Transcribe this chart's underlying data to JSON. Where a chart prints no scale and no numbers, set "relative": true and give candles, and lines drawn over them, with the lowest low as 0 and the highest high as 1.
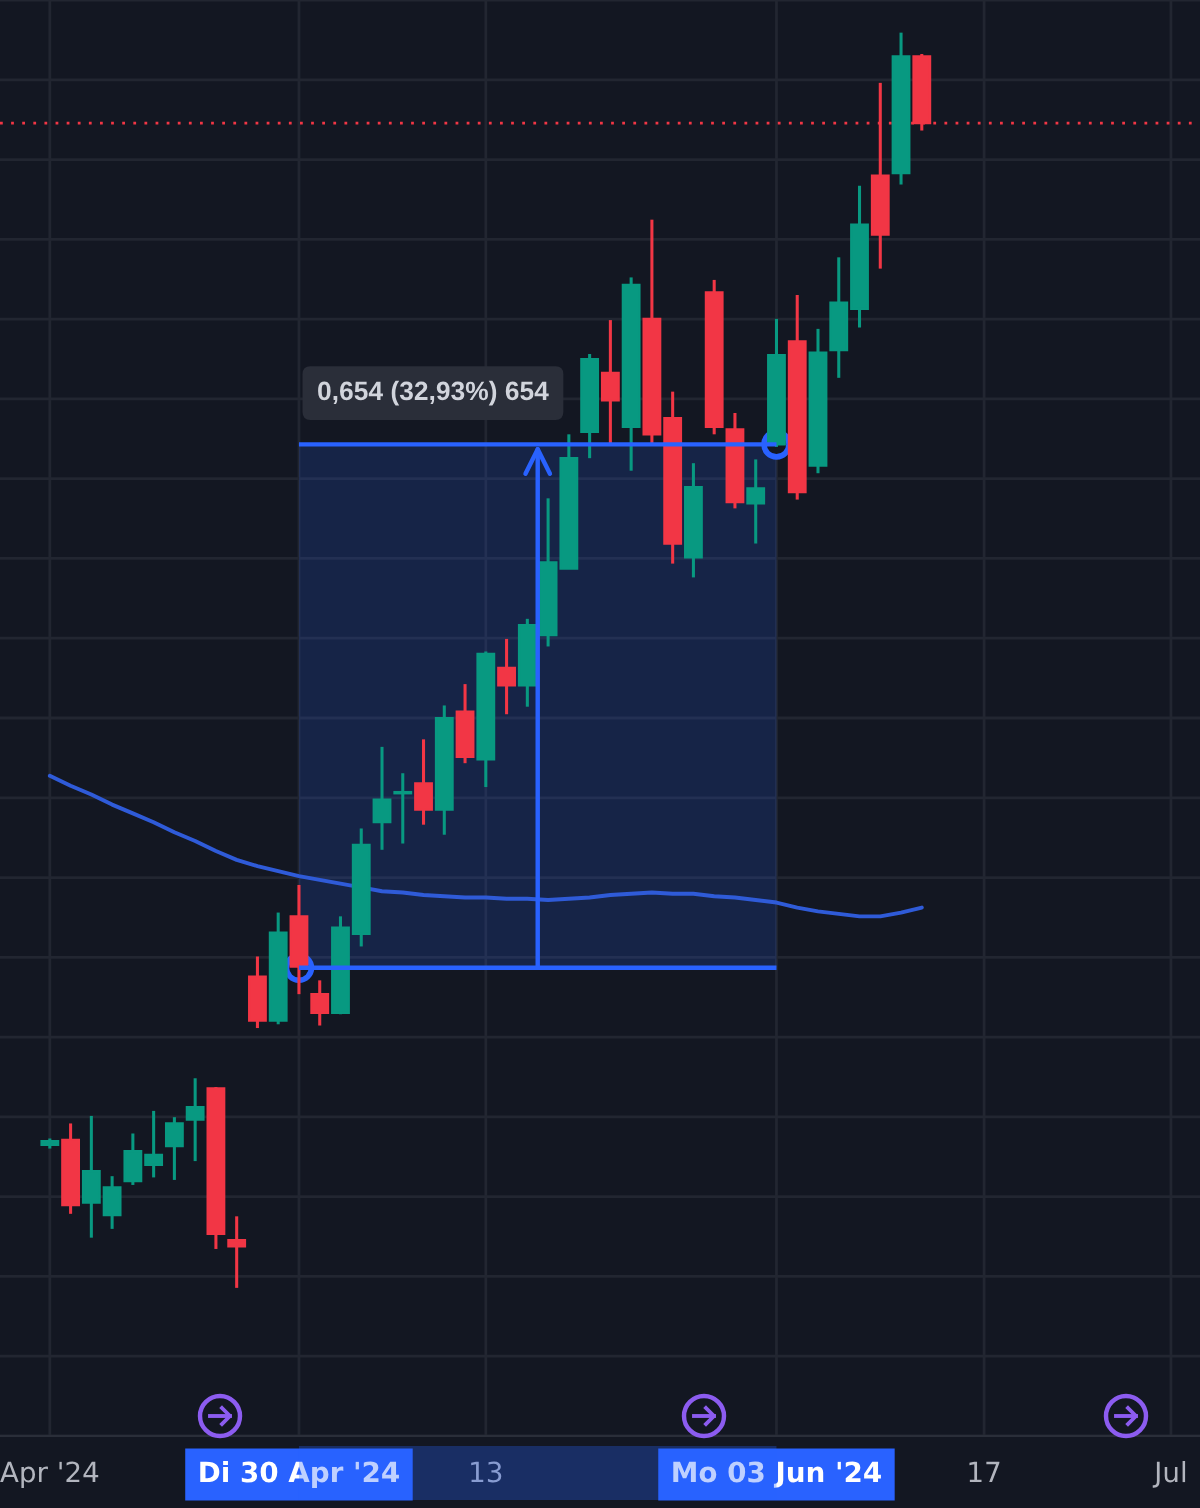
{
  "chart_data": {
    "type": "candlestick",
    "relative": true,
    "grid": true,
    "categories": [
      "Apr '24",
      null,
      null,
      null,
      null,
      null,
      null,
      null,
      null,
      null,
      null,
      null,
      "Di 30 Apr '24",
      null,
      null,
      null,
      null,
      null,
      null,
      null,
      null,
      "13",
      null,
      null,
      null,
      null,
      null,
      null,
      null,
      null,
      null,
      null,
      null,
      null,
      null,
      "Mo 03 Jun '24",
      null,
      null,
      null,
      null,
      null,
      null,
      null,
      null,
      null,
      "17",
      null,
      null,
      null,
      null,
      null,
      null,
      null,
      null,
      "Jul"
    ],
    "series": [
      {
        "ohlc": [
          [
            0.114,
            0.119,
            0.111,
            0.117
          ],
          [
            0.118,
            0.131,
            0.059,
            0.066
          ],
          [
            0.068,
            0.137,
            0.04,
            0.093
          ],
          [
            0.058,
            0.089,
            0.047,
            0.08
          ],
          [
            0.085,
            0.123,
            0.082,
            0.109
          ],
          [
            0.098,
            0.141,
            0.088,
            0.106
          ],
          [
            0.113,
            0.136,
            0.086,
            0.131
          ],
          [
            0.134,
            0.167,
            0.101,
            0.144
          ],
          [
            0.159,
            0.16,
            0.031,
            0.043
          ],
          [
            0.038,
            0.057,
            0.0,
            0.033
          ],
          [
            0.248,
            0.264,
            0.207,
            0.213
          ],
          [
            0.213,
            0.299,
            0.21,
            0.283
          ],
          [
            0.296,
            0.321,
            0.234,
            0.256
          ],
          [
            0.234,
            0.245,
            0.209,
            0.219
          ],
          [
            0.219,
            0.296,
            0.218,
            0.287
          ],
          [
            0.282,
            0.366,
            0.272,
            0.353
          ],
          [
            0.371,
            0.431,
            0.349,
            0.389
          ],
          [
            0.394,
            0.41,
            0.354,
            0.395
          ],
          [
            0.402,
            0.437,
            0.369,
            0.381
          ],
          [
            0.381,
            0.464,
            0.361,
            0.454
          ],
          [
            0.459,
            0.481,
            0.418,
            0.423
          ],
          [
            0.421,
            0.507,
            0.399,
            0.505
          ],
          [
            0.494,
            0.517,
            0.457,
            0.48
          ],
          [
            0.48,
            0.533,
            0.463,
            0.528
          ],
          [
            0.52,
            0.629,
            0.511,
            0.578
          ],
          [
            0.573,
            0.68,
            0.573,
            0.661
          ],
          [
            0.682,
            0.744,
            0.661,
            0.74
          ],
          [
            0.729,
            0.771,
            0.672,
            0.707
          ],
          [
            0.686,
            0.805,
            0.651,
            0.799
          ],
          [
            0.772,
            0.851,
            0.672,
            0.68
          ],
          [
            0.693,
            0.714,
            0.577,
            0.593
          ],
          [
            0.582,
            0.657,
            0.566,
            0.638
          ],
          [
            0.793,
            0.803,
            0.68,
            0.686
          ],
          [
            0.684,
            0.697,
            0.621,
            0.626
          ],
          [
            0.625,
            0.66,
            0.593,
            0.637
          ],
          [
            0.672,
            0.772,
            0.67,
            0.743
          ],
          [
            0.754,
            0.791,
            0.628,
            0.634
          ],
          [
            0.655,
            0.764,
            0.649,
            0.745
          ],
          [
            0.747,
            0.821,
            0.725,
            0.785
          ],
          [
            0.78,
            0.878,
            0.765,
            0.847
          ],
          [
            0.886,
            0.96,
            0.812,
            0.839
          ],
          [
            0.888,
            1.0,
            0.879,
            0.981
          ],
          [
            0.981,
            0.983,
            0.922,
            0.928
          ],
          null,
          null,
          null,
          null,
          null,
          null,
          null,
          null,
          null,
          null,
          null,
          null
        ],
        "colors": [
          "#089981",
          "#f23645",
          "#089981",
          "#089981",
          "#089981",
          "#089981",
          "#089981",
          "#089981",
          "#f23645",
          "#f23645",
          "#f23645",
          "#089981",
          "#f23645",
          "#f23645",
          "#089981",
          "#089981",
          "#089981",
          "#089981",
          "#f23645",
          "#089981",
          "#f23645",
          "#089981",
          "#f23645",
          "#089981",
          "#089981",
          "#089981",
          "#089981",
          "#f23645",
          "#089981",
          "#f23645",
          "#f23645",
          "#089981",
          "#f23645",
          "#f23645",
          "#089981",
          "#089981",
          "#f23645",
          "#089981",
          "#089981",
          "#089981",
          "#f23645",
          "#089981",
          "#f23645",
          null,
          null,
          null,
          null,
          null,
          null,
          null,
          null,
          null,
          null,
          null,
          null
        ]
      },
      {
        "type": "line",
        "color": "#2f5bd8",
        "values": [
          0.408,
          0.4,
          0.393,
          0.385,
          0.378,
          0.371,
          0.363,
          0.356,
          0.348,
          0.341,
          0.336,
          0.332,
          0.328,
          0.325,
          0.322,
          0.319,
          0.316,
          0.315,
          0.313,
          0.312,
          0.311,
          0.311,
          0.31,
          0.31,
          0.309,
          0.31,
          0.311,
          0.313,
          0.314,
          0.315,
          0.314,
          0.314,
          0.312,
          0.311,
          0.309,
          0.307,
          0.303,
          0.3,
          0.298,
          0.296,
          0.296,
          0.299,
          0.303,
          null,
          null,
          null,
          null,
          null,
          null,
          null,
          null,
          null,
          null,
          null,
          null
        ]
      }
    ],
    "ref_lines": [
      {
        "axis": "y",
        "value": 0.928,
        "color": "#f23645",
        "line_style": "dotted"
      },
      {
        "axis": "y",
        "value": 0.255,
        "color": "#2962ff"
      },
      {
        "axis": "y",
        "value": 0.672,
        "color": "#2962ff"
      }
    ],
    "bands": [
      {
        "axis": "x",
        "from": "Di 30 Apr '24",
        "to": "Mo 03 Jun '24",
        "label": "0,654 (32,93%) 654",
        "color": "#2962ff"
      }
    ]
  }
}
